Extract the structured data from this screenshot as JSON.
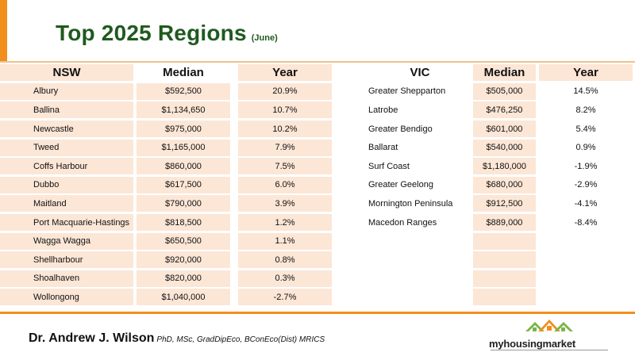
{
  "header": {
    "title": "Top 2025 Regions",
    "subtitle": "(June)"
  },
  "nsw": {
    "headers": {
      "region": "NSW",
      "median": "Median",
      "year": "Year"
    },
    "rows": [
      {
        "region": "Albury",
        "median": "$592,500",
        "year": "20.9%"
      },
      {
        "region": "Ballina",
        "median": "$1,134,650",
        "year": "10.7%"
      },
      {
        "region": "Newcastle",
        "median": "$975,000",
        "year": "10.2%"
      },
      {
        "region": "Tweed",
        "median": "$1,165,000",
        "year": "7.9%"
      },
      {
        "region": "Coffs Harbour",
        "median": "$860,000",
        "year": "7.5%"
      },
      {
        "region": "Dubbo",
        "median": "$617,500",
        "year": "6.0%"
      },
      {
        "region": "Maitland",
        "median": "$790,000",
        "year": "3.9%"
      },
      {
        "region": "Port Macquarie-Hastings",
        "median": "$818,500",
        "year": "1.2%"
      },
      {
        "region": "Wagga Wagga",
        "median": "$650,500",
        "year": "1.1%"
      },
      {
        "region": "Shellharbour",
        "median": "$920,000",
        "year": "0.8%"
      },
      {
        "region": "Shoalhaven",
        "median": "$820,000",
        "year": "0.3%"
      },
      {
        "region": "Wollongong",
        "median": "$1,040,000",
        "year": "-2.7%"
      }
    ]
  },
  "vic": {
    "headers": {
      "region": "VIC",
      "median": "Median",
      "year": "Year"
    },
    "rows": [
      {
        "region": "Greater Shepparton",
        "median": "$505,000",
        "year": "14.5%"
      },
      {
        "region": "Latrobe",
        "median": "$476,250",
        "year": "8.2%"
      },
      {
        "region": "Greater Bendigo",
        "median": "$601,000",
        "year": "5.4%"
      },
      {
        "region": "Ballarat",
        "median": "$540,000",
        "year": "0.9%"
      },
      {
        "region": "Surf Coast",
        "median": "$1,180,000",
        "year": "-1.9%"
      },
      {
        "region": "Greater Geelong",
        "median": "$680,000",
        "year": "-2.9%"
      },
      {
        "region": "Mornington Peninsula",
        "median": "$912,500",
        "year": "-4.1%"
      },
      {
        "region": "Macedon Ranges",
        "median": "$889,000",
        "year": "-8.4%"
      },
      {
        "region": "",
        "median": "",
        "year": ""
      },
      {
        "region": "",
        "median": "",
        "year": ""
      },
      {
        "region": "",
        "median": "",
        "year": ""
      },
      {
        "region": "",
        "median": "",
        "year": ""
      }
    ]
  },
  "footer": {
    "author": "Dr. Andrew J. Wilson",
    "qualifications": "PhD, MSc, GradDipEco, BConEco(Dist) MRICS",
    "logo_text": "myhousingmarket"
  },
  "colors": {
    "accent": "#f28e1c",
    "title": "#1f5a1f",
    "cell_fill": "#fce6d6",
    "logo_green": "#7ab648"
  }
}
